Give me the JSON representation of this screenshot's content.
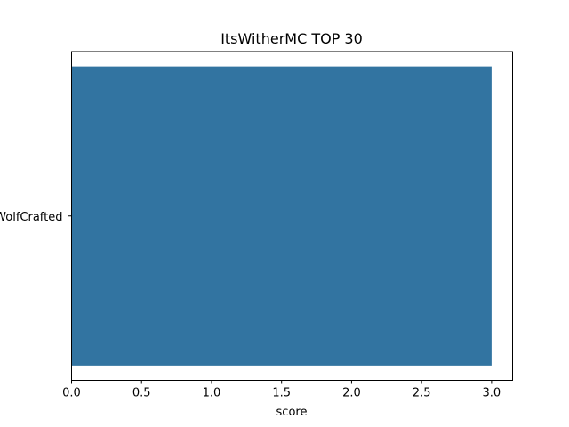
{
  "chart_data": {
    "type": "bar",
    "orientation": "horizontal",
    "title": "ItsWitherMC TOP 30",
    "xlabel": "score",
    "ylabel": "",
    "categories": [
      "WolfCrafted"
    ],
    "values": [
      3.0
    ],
    "xlim": [
      0,
      3.15
    ],
    "xticks": [
      "0.0",
      "0.5",
      "1.0",
      "1.5",
      "2.0",
      "2.5",
      "3.0"
    ],
    "grid": false,
    "legend": false,
    "colors": {
      "bar": "#3274a1",
      "axis": "#000000",
      "background": "#ffffff"
    }
  }
}
